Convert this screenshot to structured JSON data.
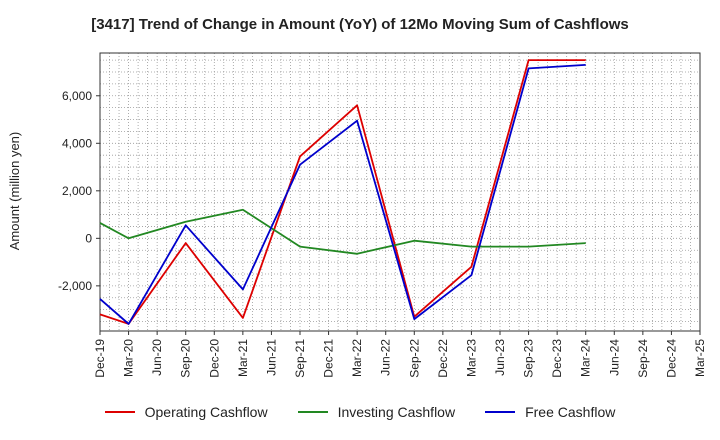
{
  "chart_data": {
    "type": "line",
    "title": "[3417]  Trend of Change in Amount (YoY) of 12Mo Moving Sum of Cashflows",
    "xlabel": "",
    "ylabel": "Amount (million yen)",
    "ylim": [
      -3900,
      7800
    ],
    "yticks": [
      -2000,
      0,
      2000,
      4000,
      6000
    ],
    "ytick_labels": [
      "-2,000",
      "0",
      "2,000",
      "4,000",
      "6,000"
    ],
    "grid": true,
    "legend_position": "bottom",
    "categories": [
      "Dec-19",
      "Mar-20",
      "Jun-20",
      "Sep-20",
      "Dec-20",
      "Mar-21",
      "Jun-21",
      "Sep-21",
      "Dec-21",
      "Mar-22",
      "Jun-22",
      "Sep-22",
      "Dec-22",
      "Mar-23",
      "Jun-23",
      "Sep-23",
      "Dec-23",
      "Mar-24",
      "Jun-24",
      "Sep-24",
      "Dec-24",
      "Mar-25"
    ],
    "series": [
      {
        "name": "Operating Cashflow",
        "color": "#dd0000",
        "values": [
          -3200,
          -3600,
          null,
          -200,
          null,
          -3350,
          null,
          3450,
          null,
          5600,
          null,
          -3300,
          null,
          -1200,
          null,
          7500,
          null,
          7500,
          null,
          null,
          null,
          null
        ]
      },
      {
        "name": "Investing Cashflow",
        "color": "#228822",
        "values": [
          650,
          0,
          null,
          700,
          null,
          1200,
          null,
          -350,
          null,
          -650,
          null,
          -100,
          null,
          -350,
          null,
          -350,
          null,
          -200,
          null,
          null,
          null,
          null
        ]
      },
      {
        "name": "Free Cashflow",
        "color": "#0000cc",
        "values": [
          -2550,
          -3600,
          null,
          550,
          null,
          -2150,
          null,
          3100,
          null,
          4950,
          null,
          -3400,
          null,
          -1550,
          null,
          7150,
          null,
          7300,
          null,
          null,
          null,
          null
        ]
      }
    ]
  }
}
